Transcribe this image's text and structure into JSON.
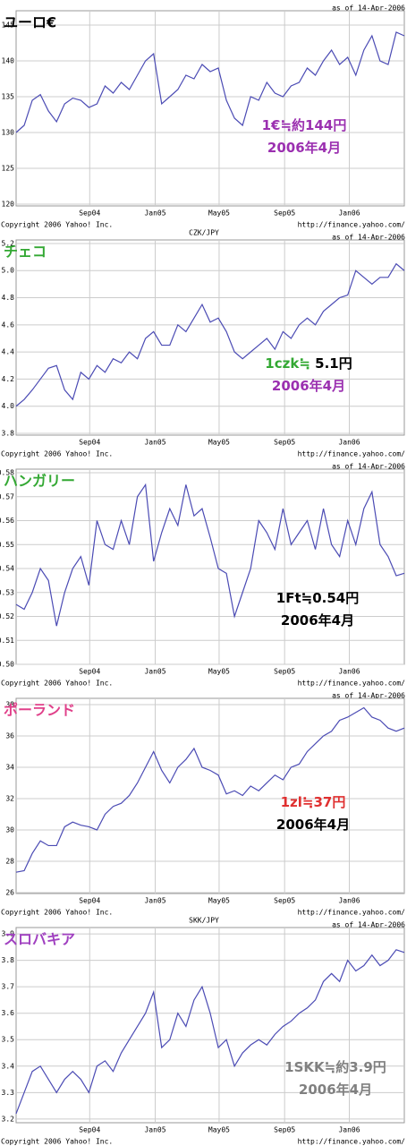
{
  "chart_data": [
    {
      "type": "line",
      "title": "ユーロ€",
      "title_color": "#000000",
      "as_of": "as of 14-Apr-2006",
      "copyright": "Copyright 2006 Yahoo! Inc.",
      "source": "http://finance.yahoo.com/",
      "color": "#4b4bb4",
      "grid": true,
      "xlim": [
        0,
        48
      ],
      "xticks": [
        {
          "value": 9.1,
          "label": "Sep04"
        },
        {
          "value": 17.2,
          "label": "Jan05"
        },
        {
          "value": 25.1,
          "label": "May05"
        },
        {
          "value": 33.2,
          "label": "Sep05"
        },
        {
          "value": 41.2,
          "label": "Jan06"
        }
      ],
      "ylim": [
        119.75,
        147
      ],
      "yticks": [
        120,
        125,
        130,
        135,
        140,
        145
      ],
      "values": [
        130,
        131,
        134.5,
        135.3,
        133,
        131.5,
        134,
        134.8,
        134.5,
        133.5,
        134,
        136.5,
        135.5,
        137,
        136,
        138,
        140,
        141,
        134,
        135,
        136,
        138,
        137.5,
        139.5,
        138.5,
        139,
        134.5,
        132,
        131,
        135,
        134.5,
        137,
        135.5,
        135,
        136.5,
        137,
        139,
        138,
        140,
        141.5,
        139.5,
        140.5,
        138,
        141.5,
        143.5,
        140,
        139.5,
        144,
        143.5
      ],
      "annotations": [
        [
          {
            "text": "1€≒約144円",
            "color": "#9b30b0"
          }
        ],
        [
          {
            "text": "2006年4月",
            "color": "#9b30b0"
          }
        ]
      ]
    },
    {
      "type": "line",
      "title": "チェコ",
      "title_color": "#33a833",
      "pair": "CZK/JPY",
      "as_of": "as of 14-Apr-2006",
      "copyright": "Copyright 2006 Yahoo! Inc.",
      "source": "http://finance.yahoo.com/",
      "color": "#4b4bb4",
      "grid": true,
      "xlim": [
        0,
        48
      ],
      "xticks": [
        {
          "value": 9.1,
          "label": "Sep04"
        },
        {
          "value": 17.2,
          "label": "Jan05"
        },
        {
          "value": 25.1,
          "label": "May05"
        },
        {
          "value": 33.2,
          "label": "Sep05"
        },
        {
          "value": 41.2,
          "label": "Jan06"
        }
      ],
      "ylim": [
        3.787,
        5.226
      ],
      "yticks": [
        3.8,
        {
          "value": 4,
          "label": "4.0"
        },
        4.2,
        4.4,
        4.6,
        4.8,
        {
          "value": 5,
          "label": "5.0"
        },
        5.2
      ],
      "values": [
        4.0,
        4.05,
        4.12,
        4.2,
        4.28,
        4.3,
        4.12,
        4.05,
        4.25,
        4.2,
        4.3,
        4.25,
        4.35,
        4.32,
        4.4,
        4.35,
        4.5,
        4.55,
        4.45,
        4.45,
        4.6,
        4.55,
        4.65,
        4.75,
        4.62,
        4.65,
        4.55,
        4.4,
        4.35,
        4.4,
        4.45,
        4.5,
        4.42,
        4.55,
        4.5,
        4.6,
        4.65,
        4.6,
        4.7,
        4.75,
        4.8,
        4.82,
        5.0,
        4.95,
        4.9,
        4.95,
        4.95,
        5.05,
        5.0
      ],
      "annotations": [
        [
          {
            "text": "1czk≒",
            "color": "#33a833"
          },
          {
            "text": " 5.1円",
            "color": "#000000"
          }
        ],
        [
          {
            "text": "2006年4月",
            "color": "#9b30b0"
          }
        ]
      ]
    },
    {
      "type": "line",
      "title": "ハンガリー",
      "title_color": "#33a833",
      "as_of": "as of 14-Apr-2006",
      "copyright": "Copyright 2006 Yahoo! Inc.",
      "source": "http://finance.yahoo.com/",
      "color": "#4b4bb4",
      "grid": true,
      "xlim": [
        0,
        48
      ],
      "xticks": [
        {
          "value": 9.1,
          "label": "Sep04"
        },
        {
          "value": 17.2,
          "label": "Jan05"
        },
        {
          "value": 25.1,
          "label": "May05"
        },
        {
          "value": 33.2,
          "label": "Sep05"
        },
        {
          "value": 41.2,
          "label": "Jan06"
        }
      ],
      "ylim": [
        0.5,
        0.5815
      ],
      "yticks": [
        {
          "value": 0.5,
          "label": "0.50"
        },
        0.51,
        0.52,
        0.53,
        0.54,
        0.55,
        0.56,
        0.57,
        0.58
      ],
      "values": [
        0.525,
        0.523,
        0.53,
        0.54,
        0.535,
        0.516,
        0.53,
        0.54,
        0.545,
        0.533,
        0.56,
        0.55,
        0.548,
        0.56,
        0.55,
        0.57,
        0.575,
        0.543,
        0.555,
        0.565,
        0.558,
        0.575,
        0.562,
        0.565,
        0.553,
        0.54,
        0.538,
        0.52,
        0.53,
        0.54,
        0.56,
        0.555,
        0.548,
        0.565,
        0.55,
        0.555,
        0.56,
        0.548,
        0.565,
        0.55,
        0.545,
        0.56,
        0.55,
        0.565,
        0.572,
        0.55,
        0.545,
        0.537,
        0.538
      ],
      "annotations": [
        [
          {
            "text": "1Ft≒0.54円",
            "color": "#000000"
          }
        ],
        [
          {
            "text": "2006年4月",
            "color": "#000000"
          }
        ]
      ]
    },
    {
      "type": "line",
      "title": "ポーランド",
      "title_color": "#e0408a",
      "as_of": "as of 14-Apr-2006",
      "copyright": "Copyright 2006 Yahoo! Inc.",
      "source": "http://finance.yahoo.com/",
      "color": "#4b4bb4",
      "grid": true,
      "xlim": [
        0,
        48
      ],
      "xticks": [
        {
          "value": 9.1,
          "label": "Sep04"
        },
        {
          "value": 17.2,
          "label": "Jan05"
        },
        {
          "value": 25.1,
          "label": "May05"
        },
        {
          "value": 33.2,
          "label": "Sep05"
        },
        {
          "value": 41.2,
          "label": "Jan06"
        }
      ],
      "ylim": [
        25.94,
        38.4
      ],
      "yticks": [
        26,
        28,
        30,
        32,
        34,
        36,
        38
      ],
      "values": [
        27.3,
        27.4,
        28.5,
        29.3,
        29,
        29,
        30.2,
        30.5,
        30.3,
        30.2,
        30,
        31,
        31.5,
        31.7,
        32.2,
        33,
        34,
        35,
        33.8,
        33,
        34,
        34.5,
        35.2,
        34,
        33.8,
        33.5,
        32.3,
        32.5,
        32.2,
        32.8,
        32.5,
        33,
        33.5,
        33.2,
        34,
        34.2,
        35,
        35.5,
        36,
        36.3,
        37,
        37.2,
        37.5,
        37.8,
        37.2,
        37,
        36.5,
        36.3,
        36.5
      ],
      "annotations": [
        [
          {
            "text": "1zl≒37円",
            "color": "#e03030"
          }
        ],
        [
          {
            "text": "2006年4月",
            "color": "#000000"
          }
        ]
      ]
    },
    {
      "type": "line",
      "title": "スロバキア",
      "title_color": "#a040c0",
      "pair": "SKK/JPY",
      "as_of": "as of 14-Apr-2006",
      "copyright": "Copyright 2006 Yahoo! Inc.",
      "source": "http://finance.yahoo.com/",
      "color": "#4b4bb4",
      "grid": true,
      "xlim": [
        0,
        48
      ],
      "xticks": [
        {
          "value": 9.1,
          "label": "Sep04"
        },
        {
          "value": 17.2,
          "label": "Jan05"
        },
        {
          "value": 25.1,
          "label": "May05"
        },
        {
          "value": 33.2,
          "label": "Sep05"
        },
        {
          "value": 41.2,
          "label": "Jan06"
        }
      ],
      "ylim": [
        3.186,
        3.924
      ],
      "yticks": [
        3.2,
        3.3,
        3.4,
        3.5,
        3.6,
        3.7,
        3.8,
        3.9
      ],
      "values": [
        3.22,
        3.3,
        3.38,
        3.4,
        3.35,
        3.3,
        3.35,
        3.38,
        3.35,
        3.3,
        3.4,
        3.42,
        3.38,
        3.45,
        3.5,
        3.55,
        3.6,
        3.68,
        3.47,
        3.5,
        3.6,
        3.55,
        3.65,
        3.7,
        3.6,
        3.47,
        3.5,
        3.4,
        3.45,
        3.48,
        3.5,
        3.48,
        3.52,
        3.55,
        3.57,
        3.6,
        3.62,
        3.65,
        3.72,
        3.75,
        3.72,
        3.8,
        3.76,
        3.78,
        3.82,
        3.78,
        3.8,
        3.84,
        3.83
      ],
      "annotations": [
        [
          {
            "text": "1SKK≒約3.9円",
            "color": "#808080"
          }
        ],
        [
          {
            "text": "2006年4月",
            "color": "#808080"
          }
        ]
      ]
    }
  ]
}
